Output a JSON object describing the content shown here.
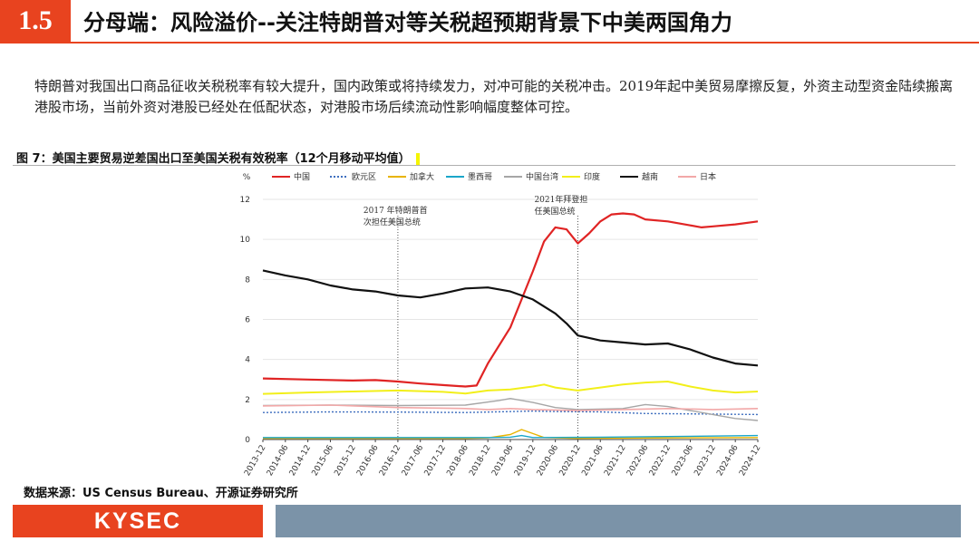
{
  "header": {
    "section_number": "1.5",
    "title": "分母端：风险溢价--关注特朗普对等关税超预期背景下中美两国角力"
  },
  "body_text": "特朗普对我国出口商品征收关税税率有较大提升，国内政策或将持续发力，对冲可能的关税冲击。2019年起中美贸易摩擦反复，外资主动型资金陆续搬离港股市场，当前外资对港股已经处在低配状态，对港股市场后续流动性影响幅度整体可控。",
  "figure_title": "图 7：美国主要贸易逆差国出口至美国关税有效税率（12个月移动平均值）",
  "source": "数据来源：US Census Bureau、开源证券研究所",
  "footer": {
    "logo_text": "KYSEC"
  },
  "chart_data": {
    "type": "line",
    "y_unit_label": "%",
    "ylim": [
      0,
      12
    ],
    "y_ticks": [
      "0",
      "2",
      "4",
      "6",
      "8",
      "10",
      "12"
    ],
    "x_tick_labels": [
      "2013-12",
      "2014-06",
      "2014-12",
      "2015-06",
      "2015-12",
      "2016-06",
      "2016-12",
      "2017-06",
      "2017-12",
      "2018-06",
      "2018-12",
      "2019-06",
      "2019-12",
      "2020-06",
      "2020-12",
      "2021-06",
      "2021-12",
      "2022-06",
      "2022-12",
      "2023-06",
      "2023-12",
      "2024-06",
      "2024-12"
    ],
    "legend_position": "top",
    "annotations": [
      {
        "text_line1": "2017 年特朗普首",
        "text_line2": "次担任美国总统",
        "x": "2016-12"
      },
      {
        "text_line1": "2021年拜登担",
        "text_line2": "任美国总统",
        "x": "2020-12"
      }
    ],
    "series": [
      {
        "name": "中国",
        "color": "#e02424",
        "dash": "solid",
        "width": 2.2,
        "points": [
          [
            0,
            3.05
          ],
          [
            2,
            3.0
          ],
          [
            4,
            2.95
          ],
          [
            5,
            2.97
          ],
          [
            6,
            2.9
          ],
          [
            7,
            2.8
          ],
          [
            8,
            2.72
          ],
          [
            9,
            2.65
          ],
          [
            9.5,
            2.7
          ],
          [
            10,
            3.8
          ],
          [
            11,
            5.6
          ],
          [
            11.5,
            7.0
          ],
          [
            12,
            8.4
          ],
          [
            12.5,
            9.9
          ],
          [
            13,
            10.6
          ],
          [
            13.5,
            10.5
          ],
          [
            14,
            9.8
          ],
          [
            14.5,
            10.3
          ],
          [
            15,
            10.9
          ],
          [
            15.5,
            11.25
          ],
          [
            16,
            11.3
          ],
          [
            16.5,
            11.25
          ],
          [
            17,
            11.0
          ],
          [
            18,
            10.9
          ],
          [
            19,
            10.7
          ],
          [
            19.5,
            10.6
          ],
          [
            20,
            10.65
          ],
          [
            21,
            10.75
          ],
          [
            22,
            10.9
          ]
        ]
      },
      {
        "name": "欧元区",
        "color": "#3f6fbf",
        "dash": "2,2",
        "width": 1.4,
        "points": [
          [
            0,
            1.35
          ],
          [
            3,
            1.38
          ],
          [
            6,
            1.37
          ],
          [
            9,
            1.35
          ],
          [
            12,
            1.42
          ],
          [
            13,
            1.4
          ],
          [
            15,
            1.38
          ],
          [
            17,
            1.3
          ],
          [
            19,
            1.28
          ],
          [
            22,
            1.25
          ]
        ]
      },
      {
        "name": "加拿大",
        "color": "#e8b400",
        "dash": "solid",
        "width": 1.4,
        "points": [
          [
            0,
            0.06
          ],
          [
            6,
            0.06
          ],
          [
            9,
            0.06
          ],
          [
            10,
            0.08
          ],
          [
            11,
            0.25
          ],
          [
            11.5,
            0.5
          ],
          [
            12,
            0.3
          ],
          [
            12.5,
            0.1
          ],
          [
            14,
            0.06
          ],
          [
            18,
            0.08
          ],
          [
            22,
            0.1
          ]
        ]
      },
      {
        "name": "墨西哥",
        "color": "#1aa6c9",
        "dash": "solid",
        "width": 1.4,
        "points": [
          [
            0,
            0.1
          ],
          [
            10,
            0.1
          ],
          [
            11,
            0.12
          ],
          [
            11.5,
            0.2
          ],
          [
            12,
            0.1
          ],
          [
            15,
            0.12
          ],
          [
            18,
            0.15
          ],
          [
            22,
            0.2
          ]
        ]
      },
      {
        "name": "中国台湾",
        "color": "#a6a6a6",
        "dash": "solid",
        "width": 1.4,
        "points": [
          [
            0,
            1.7
          ],
          [
            3,
            1.72
          ],
          [
            6,
            1.7
          ],
          [
            9,
            1.72
          ],
          [
            10.5,
            1.95
          ],
          [
            11,
            2.05
          ],
          [
            12,
            1.85
          ],
          [
            13,
            1.6
          ],
          [
            14,
            1.5
          ],
          [
            16,
            1.55
          ],
          [
            17,
            1.75
          ],
          [
            18,
            1.65
          ],
          [
            19,
            1.45
          ],
          [
            20,
            1.25
          ],
          [
            21,
            1.05
          ],
          [
            22,
            0.95
          ]
        ]
      },
      {
        "name": "印度",
        "color": "#f2ef1a",
        "dash": "solid",
        "width": 2.0,
        "points": [
          [
            0,
            2.28
          ],
          [
            2,
            2.35
          ],
          [
            4,
            2.4
          ],
          [
            6,
            2.45
          ],
          [
            8,
            2.38
          ],
          [
            9,
            2.3
          ],
          [
            10,
            2.45
          ],
          [
            11,
            2.5
          ],
          [
            12,
            2.65
          ],
          [
            12.5,
            2.75
          ],
          [
            13,
            2.6
          ],
          [
            14,
            2.45
          ],
          [
            15,
            2.6
          ],
          [
            16,
            2.75
          ],
          [
            17,
            2.85
          ],
          [
            18,
            2.9
          ],
          [
            19,
            2.65
          ],
          [
            20,
            2.45
          ],
          [
            21,
            2.35
          ],
          [
            22,
            2.4
          ]
        ]
      },
      {
        "name": "越南",
        "color": "#111111",
        "dash": "solid",
        "width": 2.2,
        "points": [
          [
            0,
            8.45
          ],
          [
            1,
            8.2
          ],
          [
            2,
            8.0
          ],
          [
            3,
            7.7
          ],
          [
            4,
            7.5
          ],
          [
            5,
            7.4
          ],
          [
            6,
            7.2
          ],
          [
            7,
            7.1
          ],
          [
            8,
            7.3
          ],
          [
            9,
            7.55
          ],
          [
            10,
            7.6
          ],
          [
            11,
            7.4
          ],
          [
            12,
            7.0
          ],
          [
            13,
            6.3
          ],
          [
            13.5,
            5.8
          ],
          [
            14,
            5.2
          ],
          [
            15,
            4.95
          ],
          [
            16,
            4.85
          ],
          [
            17,
            4.75
          ],
          [
            18,
            4.8
          ],
          [
            19,
            4.5
          ],
          [
            20,
            4.1
          ],
          [
            21,
            3.8
          ],
          [
            22,
            3.7
          ]
        ]
      },
      {
        "name": "日本",
        "color": "#f2a8a8",
        "dash": "solid",
        "width": 1.6,
        "points": [
          [
            0,
            1.68
          ],
          [
            3,
            1.72
          ],
          [
            6,
            1.6
          ],
          [
            9,
            1.55
          ],
          [
            10,
            1.5
          ],
          [
            11,
            1.55
          ],
          [
            12,
            1.5
          ],
          [
            14,
            1.45
          ],
          [
            16,
            1.5
          ],
          [
            18,
            1.55
          ],
          [
            20,
            1.5
          ],
          [
            22,
            1.55
          ]
        ]
      }
    ]
  }
}
